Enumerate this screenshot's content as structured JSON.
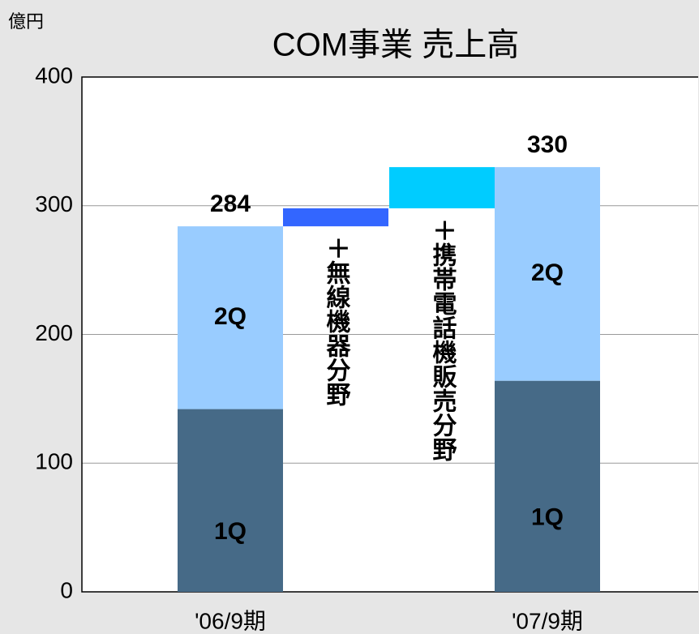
{
  "chart_data": {
    "type": "bar_bridge",
    "title": "COM事業 売上高",
    "y_label": "億円",
    "categories": [
      "'06/9期",
      "'07/9期"
    ],
    "series": [
      {
        "name": "1Q",
        "color": "#466a87",
        "values": [
          142,
          164
        ]
      },
      {
        "name": "2Q",
        "color": "#99ccff",
        "values": [
          142,
          166
        ]
      }
    ],
    "totals": [
      284,
      330
    ],
    "increments": [
      {
        "label": "＋無線機器分野",
        "value": 14,
        "color": "#3366ff"
      },
      {
        "label": "＋携帯電話機販売分野",
        "value": 32,
        "color": "#00ccff"
      }
    ],
    "ylim": [
      0,
      400
    ],
    "yticks": [
      0,
      100,
      200,
      300,
      400
    ],
    "grid": true
  }
}
